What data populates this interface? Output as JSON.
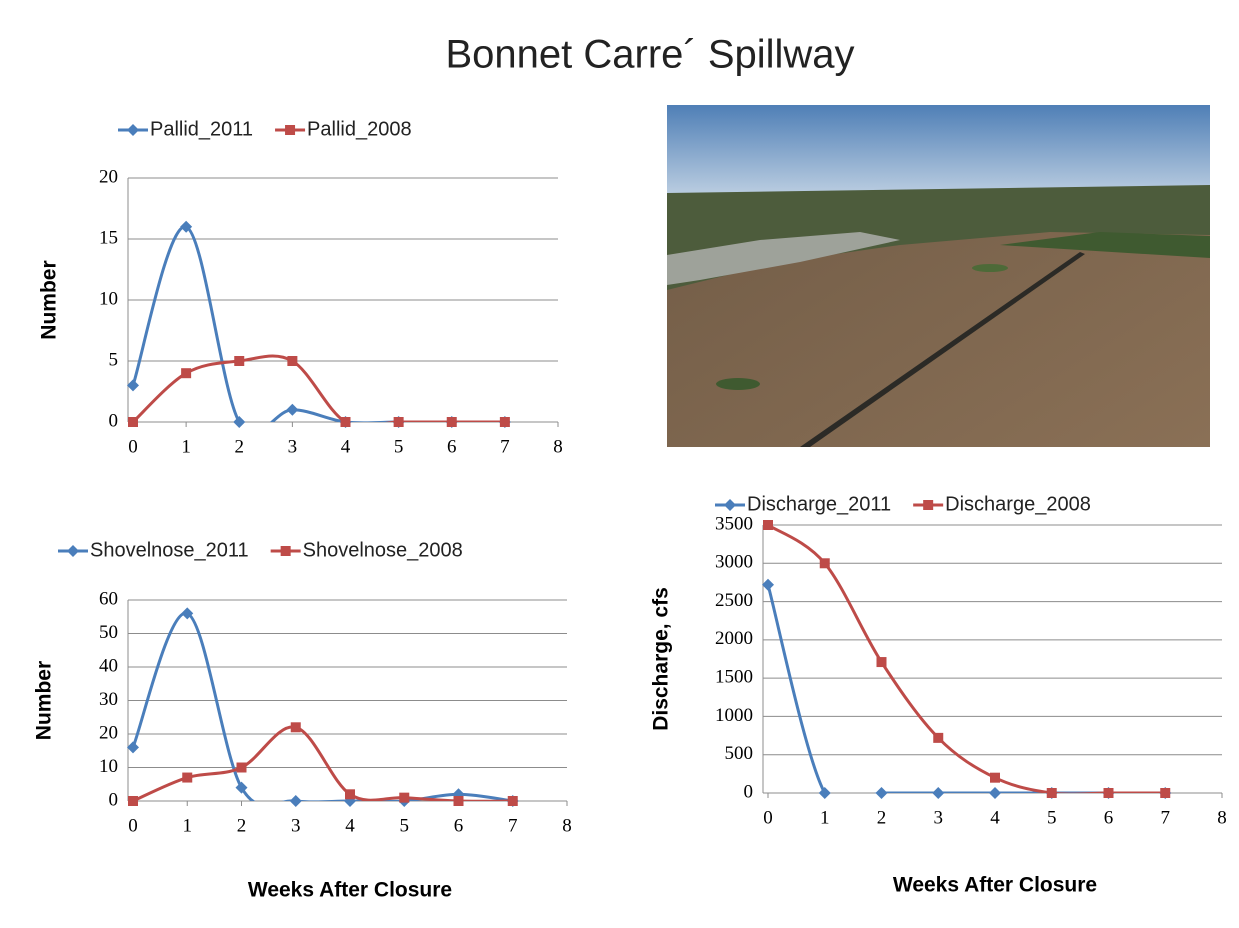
{
  "title": "Bonnet Carre´ Spillway",
  "chart_data": [
    {
      "type": "line",
      "ylabel": "Number",
      "x": [
        0,
        1,
        2,
        3,
        4,
        5,
        6,
        7
      ],
      "series": [
        {
          "name": "Pallid_2011",
          "color": "#4a7ebb",
          "marker": "diamond",
          "values": [
            3,
            16,
            0,
            1,
            0,
            0,
            0,
            0
          ]
        },
        {
          "name": "Pallid_2008",
          "color": "#be4b48",
          "marker": "square",
          "values": [
            0,
            4,
            5,
            5,
            0,
            0,
            0,
            0
          ]
        }
      ],
      "xlim": [
        0,
        8
      ],
      "xticks": [
        0,
        1,
        2,
        3,
        4,
        5,
        6,
        7,
        8
      ],
      "ylim": [
        0,
        20
      ],
      "yticks": [
        0,
        5,
        10,
        15,
        20
      ],
      "grid": true,
      "smooth": true,
      "legend": "top"
    },
    {
      "type": "line",
      "ylabel": "Number",
      "xlabel": "Weeks After Closure",
      "x": [
        0,
        1,
        2,
        3,
        4,
        5,
        6,
        7
      ],
      "series": [
        {
          "name": "Shovelnose_2011",
          "color": "#4a7ebb",
          "marker": "diamond",
          "values": [
            16,
            56,
            4,
            0,
            0,
            0,
            2,
            0
          ]
        },
        {
          "name": "Shovelnose_2008",
          "color": "#be4b48",
          "marker": "square",
          "values": [
            0,
            7,
            10,
            22,
            2,
            1,
            0,
            0
          ]
        }
      ],
      "xlim": [
        0,
        8
      ],
      "xticks": [
        0,
        1,
        2,
        3,
        4,
        5,
        6,
        7,
        8
      ],
      "ylim": [
        0,
        60
      ],
      "yticks": [
        0,
        10,
        20,
        30,
        40,
        50,
        60
      ],
      "grid": true,
      "smooth": true,
      "legend": "top"
    },
    {
      "type": "line",
      "ylabel": "Discharge, cfs",
      "xlabel": "Weeks After Closure",
      "x": [
        0,
        1,
        2,
        3,
        4,
        5,
        6,
        7
      ],
      "series": [
        {
          "name": "Discharge_2011",
          "color": "#4a7ebb",
          "marker": "diamond",
          "values": [
            2720,
            0,
            0,
            0,
            0,
            0,
            0,
            0
          ]
        },
        {
          "name": "Discharge_2008",
          "color": "#be4b48",
          "marker": "square",
          "values": [
            3500,
            3000,
            1710,
            720,
            200,
            0,
            0,
            0
          ]
        }
      ],
      "xlim": [
        0,
        8
      ],
      "xticks": [
        0,
        1,
        2,
        3,
        4,
        5,
        6,
        7,
        8
      ],
      "ylim": [
        0,
        3500
      ],
      "yticks": [
        0,
        500,
        1000,
        1500,
        2000,
        2500,
        3000,
        3500
      ],
      "grid": true,
      "smooth": true,
      "legend": "top"
    }
  ]
}
